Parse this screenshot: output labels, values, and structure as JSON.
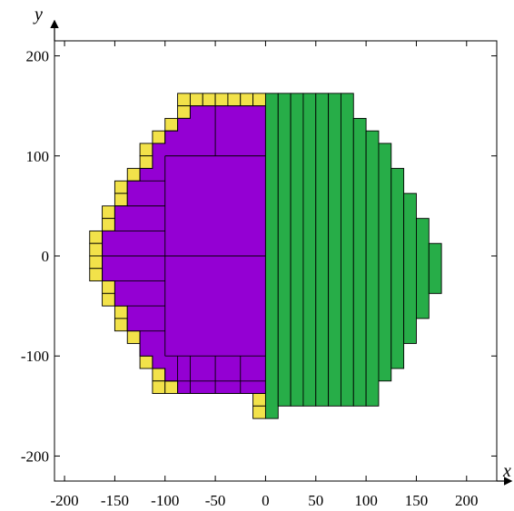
{
  "chart_data": {
    "type": "diagram",
    "xlabel": "y",
    "xlabel_note": "",
    "axis_names": {
      "x": "x",
      "y": "y"
    },
    "xlim": [
      -210,
      230
    ],
    "ylim": [
      -225,
      215
    ],
    "xticks": [
      -200,
      -150,
      -100,
      -50,
      0,
      50,
      100,
      150,
      200
    ],
    "yticks": [
      -200,
      -100,
      0,
      100,
      200
    ],
    "grid": false,
    "colors": {
      "yellow": "#f2e24a",
      "purple": "#9400d3",
      "green": "#27ad48",
      "stroke": "#000000"
    },
    "yellow_cell_size": 12.5,
    "yellow_rows": [
      {
        "y": 150,
        "from": -87.5,
        "to": -12.5
      },
      {
        "y": 137.5,
        "from": -87.5,
        "to": -87.5
      },
      {
        "y": 125,
        "from": -100,
        "to": -87.5
      },
      {
        "y": 112.5,
        "from": -112.5,
        "to": -100
      },
      {
        "y": 100,
        "from": -125,
        "to": -112.5
      },
      {
        "y": 87.5,
        "from": -125,
        "to": -125
      },
      {
        "y": 75,
        "from": -137.5,
        "to": -125
      },
      {
        "y": 62.5,
        "from": -150,
        "to": -137.5
      },
      {
        "y": 50,
        "from": -150,
        "to": -150
      },
      {
        "y": 37.5,
        "from": -162.5,
        "to": -150
      },
      {
        "y": 25,
        "from": -162.5,
        "to": -162.5
      },
      {
        "y": 12.5,
        "from": -175,
        "to": -162.5
      },
      {
        "y": 0,
        "from": -175,
        "to": -175
      },
      {
        "y": -12.5,
        "from": -175,
        "to": -175
      },
      {
        "y": -25,
        "from": -175,
        "to": -162.5
      },
      {
        "y": -37.5,
        "from": -162.5,
        "to": -162.5
      },
      {
        "y": -50,
        "from": -162.5,
        "to": -150
      },
      {
        "y": -62.5,
        "from": -150,
        "to": -150
      },
      {
        "y": -75,
        "from": -150,
        "to": -137.5
      },
      {
        "y": -87.5,
        "from": -137.5,
        "to": -125
      },
      {
        "y": -100,
        "from": -125,
        "to": -125
      },
      {
        "y": -112.5,
        "from": -125,
        "to": -112.5
      },
      {
        "y": -125,
        "from": -112.5,
        "to": -100
      },
      {
        "y": -137.5,
        "from": -112.5,
        "to": -25
      },
      {
        "y": -150,
        "from": -12.5,
        "to": -12.5
      }
    ],
    "purple_outline": [
      [
        0,
        150
      ],
      [
        -75,
        150
      ],
      [
        -75,
        137.5
      ],
      [
        -87.5,
        137.5
      ],
      [
        -87.5,
        125
      ],
      [
        -100,
        125
      ],
      [
        -100,
        112.5
      ],
      [
        -112.5,
        112.5
      ],
      [
        -112.5,
        87.5
      ],
      [
        -125,
        87.5
      ],
      [
        -125,
        75
      ],
      [
        -137.5,
        75
      ],
      [
        -137.5,
        50
      ],
      [
        -150,
        50
      ],
      [
        -150,
        25
      ],
      [
        -162.5,
        25
      ],
      [
        -162.5,
        -25
      ],
      [
        -150,
        -25
      ],
      [
        -150,
        -50
      ],
      [
        -137.5,
        -50
      ],
      [
        -137.5,
        -75
      ],
      [
        -125,
        -75
      ],
      [
        -125,
        -100
      ],
      [
        -112.5,
        -100
      ],
      [
        -112.5,
        -112.5
      ],
      [
        -100,
        -112.5
      ],
      [
        -100,
        -125
      ],
      [
        -87.5,
        -125
      ],
      [
        -87.5,
        -137.5
      ],
      [
        0,
        -137.5
      ]
    ],
    "purple_lines": [
      [
        [
          -50,
          150
        ],
        [
          -50,
          100
        ]
      ],
      [
        [
          -100,
          100
        ],
        [
          0,
          100
        ]
      ],
      [
        [
          -100,
          100
        ],
        [
          -100,
          -100
        ]
      ],
      [
        [
          -125,
          75
        ],
        [
          -100,
          75
        ]
      ],
      [
        [
          -137.5,
          50
        ],
        [
          -100,
          50
        ]
      ],
      [
        [
          -150,
          25
        ],
        [
          -100,
          25
        ]
      ],
      [
        [
          -162.5,
          0
        ],
        [
          0,
          0
        ]
      ],
      [
        [
          -150,
          -25
        ],
        [
          -100,
          -25
        ]
      ],
      [
        [
          -137.5,
          -50
        ],
        [
          -100,
          -50
        ]
      ],
      [
        [
          -125,
          -75
        ],
        [
          -100,
          -75
        ]
      ],
      [
        [
          -100,
          -100
        ],
        [
          0,
          -100
        ]
      ],
      [
        [
          -87.5,
          -100
        ],
        [
          -87.5,
          -137.5
        ]
      ],
      [
        [
          -75,
          -100
        ],
        [
          -75,
          -137.5
        ]
      ],
      [
        [
          -50,
          -100
        ],
        [
          -50,
          -137.5
        ]
      ],
      [
        [
          -25,
          -100
        ],
        [
          -25,
          -137.5
        ]
      ],
      [
        [
          -100,
          -125
        ],
        [
          0,
          -125
        ]
      ]
    ],
    "green_columns": [
      {
        "x0": 0,
        "x1": 12.5,
        "ytop": 162.5,
        "ybot": -162.5
      },
      {
        "x0": 12.5,
        "x1": 25,
        "ytop": 162.5,
        "ybot": -150
      },
      {
        "x0": 25,
        "x1": 37.5,
        "ytop": 162.5,
        "ybot": -150
      },
      {
        "x0": 37.5,
        "x1": 50,
        "ytop": 162.5,
        "ybot": -150
      },
      {
        "x0": 50,
        "x1": 62.5,
        "ytop": 162.5,
        "ybot": -150
      },
      {
        "x0": 62.5,
        "x1": 75,
        "ytop": 162.5,
        "ybot": -150
      },
      {
        "x0": 75,
        "x1": 87.5,
        "ytop": 162.5,
        "ybot": -150
      },
      {
        "x0": 87.5,
        "x1": 100,
        "ytop": 137.5,
        "ybot": -150
      },
      {
        "x0": 100,
        "x1": 112.5,
        "ytop": 125,
        "ybot": -150
      },
      {
        "x0": 112.5,
        "x1": 125,
        "ytop": 112.5,
        "ybot": -125
      },
      {
        "x0": 125,
        "x1": 137.5,
        "ytop": 87.5,
        "ybot": -112.5
      },
      {
        "x0": 137.5,
        "x1": 150,
        "ytop": 62.5,
        "ybot": -87.5
      },
      {
        "x0": 150,
        "x1": 162.5,
        "ytop": 37.5,
        "ybot": -62.5
      },
      {
        "x0": 162.5,
        "x1": 175,
        "ytop": 12.5,
        "ybot": -37.5
      }
    ],
    "edge_cell": {
      "x": -12.5,
      "y": -162.5,
      "w": 12.5,
      "h": 12.5
    }
  }
}
